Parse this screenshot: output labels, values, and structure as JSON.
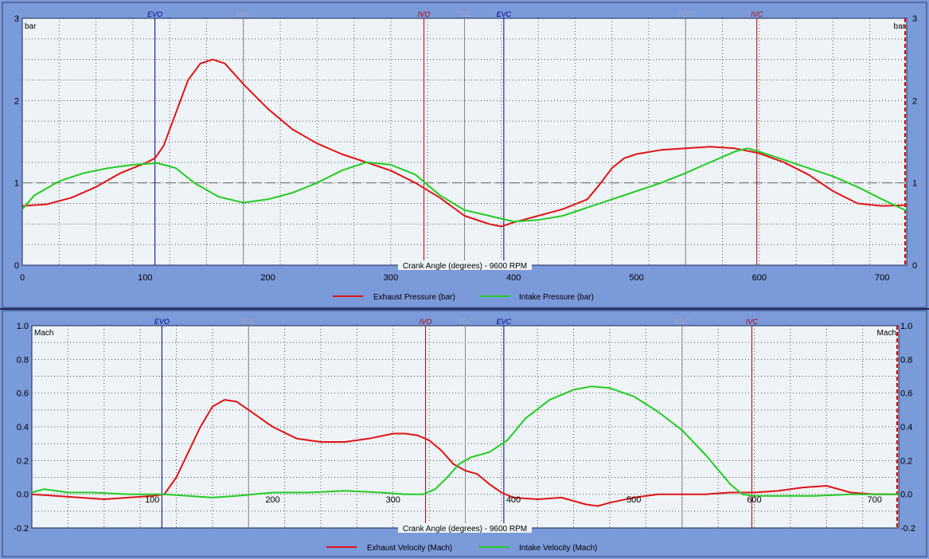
{
  "colors": {
    "background": "#7b9ad9",
    "plot_background": "#eef3f8",
    "exhaust": "#e01414",
    "intake": "#22cc22",
    "evo_evc": "#00008b",
    "ivo_ivc": "#b00000",
    "bdc_tdc": "#888888"
  },
  "chart_data": [
    {
      "type": "line",
      "title": "",
      "xlabel": "Crank Angle (degrees) - 9600 RPM",
      "ylabel": "bar",
      "ylabel_right": "bar",
      "xlim": [
        0,
        720
      ],
      "ylim": [
        0,
        3
      ],
      "xticks": [
        0,
        100,
        200,
        300,
        400,
        500,
        600,
        700
      ],
      "yticks": [
        0,
        1,
        2,
        3
      ],
      "grid": true,
      "legend_position": "bottom",
      "reference_line": 1,
      "event_markers": [
        {
          "label": "EVO",
          "x": 108,
          "kind": "evo_evc"
        },
        {
          "label": "BDC",
          "x": 180,
          "kind": "bdc_tdc"
        },
        {
          "label": "IVO",
          "x": 327,
          "kind": "ivo_ivc"
        },
        {
          "label": "TDC",
          "x": 360,
          "kind": "bdc_tdc"
        },
        {
          "label": "EVC",
          "x": 392,
          "kind": "evo_evc"
        },
        {
          "label": "BDC",
          "x": 540,
          "kind": "bdc_tdc"
        },
        {
          "label": "IVC",
          "x": 598,
          "kind": "ivo_ivc"
        }
      ],
      "series": [
        {
          "name": "Exhaust Pressure (bar)",
          "color": "#e01414",
          "x": [
            0,
            20,
            40,
            60,
            80,
            100,
            108,
            115,
            125,
            135,
            145,
            155,
            165,
            180,
            200,
            220,
            240,
            260,
            280,
            300,
            320,
            340,
            360,
            380,
            390,
            400,
            420,
            440,
            460,
            470,
            480,
            490,
            500,
            520,
            540,
            560,
            580,
            600,
            620,
            640,
            660,
            680,
            700,
            720
          ],
          "y": [
            0.72,
            0.74,
            0.82,
            0.95,
            1.12,
            1.24,
            1.3,
            1.45,
            1.85,
            2.25,
            2.45,
            2.5,
            2.45,
            2.2,
            1.9,
            1.65,
            1.48,
            1.35,
            1.25,
            1.15,
            1.0,
            0.82,
            0.6,
            0.5,
            0.47,
            0.52,
            0.6,
            0.68,
            0.8,
            0.98,
            1.18,
            1.3,
            1.35,
            1.4,
            1.42,
            1.44,
            1.42,
            1.36,
            1.25,
            1.1,
            0.9,
            0.75,
            0.72,
            0.73
          ]
        },
        {
          "name": "Intake Pressure (bar)",
          "color": "#22cc22",
          "x": [
            0,
            10,
            30,
            50,
            70,
            90,
            110,
            125,
            140,
            160,
            180,
            200,
            220,
            240,
            260,
            280,
            300,
            320,
            340,
            360,
            380,
            400,
            420,
            440,
            460,
            480,
            500,
            520,
            540,
            560,
            580,
            590,
            600,
            620,
            640,
            660,
            680,
            700,
            720
          ],
          "y": [
            0.68,
            0.85,
            1.02,
            1.12,
            1.18,
            1.22,
            1.24,
            1.18,
            1.0,
            0.83,
            0.76,
            0.8,
            0.88,
            1.0,
            1.15,
            1.25,
            1.22,
            1.1,
            0.85,
            0.67,
            0.6,
            0.53,
            0.55,
            0.6,
            0.7,
            0.8,
            0.9,
            1.0,
            1.12,
            1.25,
            1.38,
            1.42,
            1.38,
            1.28,
            1.18,
            1.08,
            0.95,
            0.8,
            0.66
          ]
        }
      ]
    },
    {
      "type": "line",
      "title": "",
      "xlabel": "Crank Angle (degrees) - 9600 RPM",
      "ylabel": "Mach",
      "ylabel_right": "Mach",
      "xlim": [
        0,
        720
      ],
      "ylim": [
        -0.2,
        1.0
      ],
      "xticks": [
        100,
        200,
        300,
        400,
        500,
        600,
        700
      ],
      "yticks": [
        -0.2,
        0.0,
        0.2,
        0.4,
        0.6,
        0.8,
        1.0
      ],
      "ytick_labels": [
        "-0.2",
        "0.0",
        "0.2",
        "0.4",
        "0.6",
        "0.8",
        "1.0"
      ],
      "grid": true,
      "legend_position": "bottom",
      "event_markers": [
        {
          "label": "EVO",
          "x": 108,
          "kind": "evo_evc"
        },
        {
          "label": "BDC",
          "x": 180,
          "kind": "bdc_tdc"
        },
        {
          "label": "IVO",
          "x": 327,
          "kind": "ivo_ivc"
        },
        {
          "label": "TDC",
          "x": 360,
          "kind": "bdc_tdc"
        },
        {
          "label": "EVC",
          "x": 392,
          "kind": "evo_evc"
        },
        {
          "label": "BDC",
          "x": 540,
          "kind": "bdc_tdc"
        },
        {
          "label": "IVC",
          "x": 598,
          "kind": "ivo_ivc"
        }
      ],
      "series": [
        {
          "name": "Exhaust Velocity (Mach)",
          "color": "#e01414",
          "x": [
            0,
            20,
            40,
            60,
            80,
            100,
            110,
            120,
            130,
            140,
            150,
            160,
            170,
            180,
            200,
            220,
            240,
            260,
            280,
            300,
            310,
            320,
            330,
            340,
            350,
            360,
            370,
            380,
            390,
            400,
            420,
            440,
            460,
            470,
            480,
            500,
            520,
            540,
            560,
            580,
            600,
            620,
            640,
            660,
            680,
            700,
            720
          ],
          "y": [
            0.0,
            -0.01,
            -0.02,
            -0.03,
            -0.02,
            -0.01,
            0.0,
            0.1,
            0.25,
            0.4,
            0.52,
            0.56,
            0.55,
            0.5,
            0.4,
            0.33,
            0.31,
            0.31,
            0.33,
            0.36,
            0.36,
            0.35,
            0.32,
            0.26,
            0.18,
            0.14,
            0.12,
            0.06,
            0.01,
            -0.02,
            -0.03,
            -0.02,
            -0.06,
            -0.07,
            -0.05,
            -0.02,
            0.0,
            0.0,
            0.0,
            0.01,
            0.01,
            0.02,
            0.04,
            0.05,
            0.01,
            0.0,
            0.0
          ]
        },
        {
          "name": "Intake Velocity (Mach)",
          "color": "#22cc22",
          "x": [
            0,
            10,
            30,
            50,
            80,
            110,
            130,
            150,
            170,
            200,
            230,
            260,
            290,
            310,
            325,
            335,
            345,
            355,
            365,
            380,
            395,
            410,
            430,
            450,
            465,
            480,
            500,
            520,
            540,
            560,
            580,
            590,
            600,
            620,
            650,
            680,
            720
          ],
          "y": [
            0.01,
            0.03,
            0.01,
            0.01,
            0.0,
            0.0,
            -0.01,
            -0.02,
            -0.01,
            0.01,
            0.01,
            0.02,
            0.01,
            0.0,
            0.0,
            0.03,
            0.1,
            0.18,
            0.22,
            0.25,
            0.32,
            0.45,
            0.56,
            0.62,
            0.64,
            0.63,
            0.58,
            0.49,
            0.38,
            0.23,
            0.06,
            0.0,
            -0.01,
            -0.01,
            -0.01,
            0.0,
            0.0
          ]
        }
      ]
    }
  ]
}
